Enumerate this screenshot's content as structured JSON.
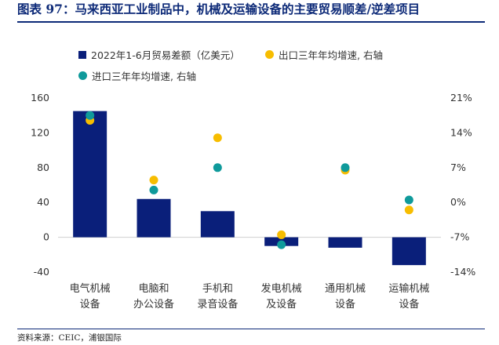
{
  "title": "图表 97：马来西亚工业制品中，机械及运输设备的主要贸易顺差/逆差项目",
  "source": "资料来源：CEIC，浦银国际",
  "colors": {
    "bar": "#0a1f7a",
    "export_growth": "#f7bd00",
    "import_growth": "#0f9a9b",
    "title": "#0d2a78"
  },
  "chart_data": {
    "type": "bar",
    "categories": [
      "电气机械\n设备",
      "电脑和\n办公设备",
      "手机和\n录音设备",
      "发电机械\n及设备",
      "通用机械\n设备",
      "运输机械\n设备"
    ],
    "series": [
      {
        "name": "2022年1-6月贸易差额（亿美元）",
        "type": "bar",
        "axis": "left",
        "values": [
          145,
          44,
          30,
          -10,
          -12,
          -32
        ]
      },
      {
        "name": "出口三年年均增速, 右轴",
        "type": "scatter",
        "axis": "right",
        "values": [
          16.5,
          4.5,
          13.0,
          -6.5,
          6.5,
          -1.5
        ]
      },
      {
        "name": "进口三年年均增速, 右轴",
        "type": "scatter",
        "axis": "right",
        "values": [
          17.5,
          2.5,
          7.0,
          -8.5,
          7.0,
          0.5
        ]
      }
    ],
    "ylim_left": [
      -40,
      160
    ],
    "yticks_left": [
      "160",
      "120",
      "80",
      "40",
      "0",
      "-40"
    ],
    "ylim_right": [
      -14,
      21
    ],
    "yticks_right": [
      "21%",
      "14%",
      "7%",
      "0%",
      "-7%",
      "-14%"
    ],
    "grid": false
  }
}
